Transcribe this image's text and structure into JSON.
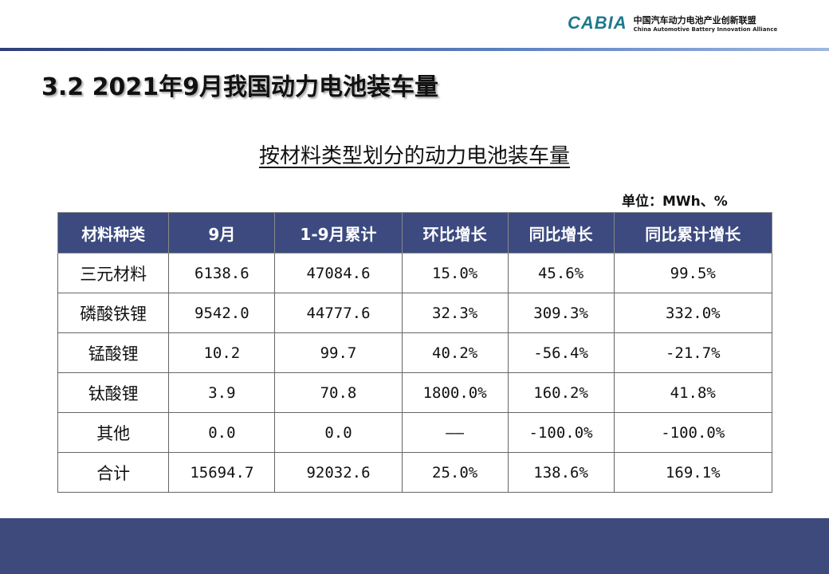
{
  "logo": {
    "mark": "CABIA",
    "name_cn": "中国汽车动力电池产业创新联盟",
    "name_en": "China Automotive Battery Innovation Alliance"
  },
  "title": "3.2 2021年9月我国动力电池装车量",
  "subtitle": "按材料类型划分的动力电池装车量",
  "unit": "单位：MWh、%",
  "table": {
    "headers": [
      "材料种类",
      "9月",
      "1-9月累计",
      "环比增长",
      "同比增长",
      "同比累计增长"
    ],
    "rows": [
      [
        "三元材料",
        "6138.6",
        "47084.6",
        "15.0%",
        "45.6%",
        "99.5%"
      ],
      [
        "磷酸铁锂",
        "9542.0",
        "44777.6",
        "32.3%",
        "309.3%",
        "332.0%"
      ],
      [
        "锰酸锂",
        "10.2",
        "99.7",
        "40.2%",
        "-56.4%",
        "-21.7%"
      ],
      [
        "钛酸锂",
        "3.9",
        "70.8",
        "1800.0%",
        "160.2%",
        "41.8%"
      ],
      [
        "其他",
        "0.0",
        "0.0",
        "——",
        "-100.0%",
        "-100.0%"
      ],
      [
        "合计",
        "15694.7",
        "92032.6",
        "25.0%",
        "138.6%",
        "169.1%"
      ]
    ]
  }
}
